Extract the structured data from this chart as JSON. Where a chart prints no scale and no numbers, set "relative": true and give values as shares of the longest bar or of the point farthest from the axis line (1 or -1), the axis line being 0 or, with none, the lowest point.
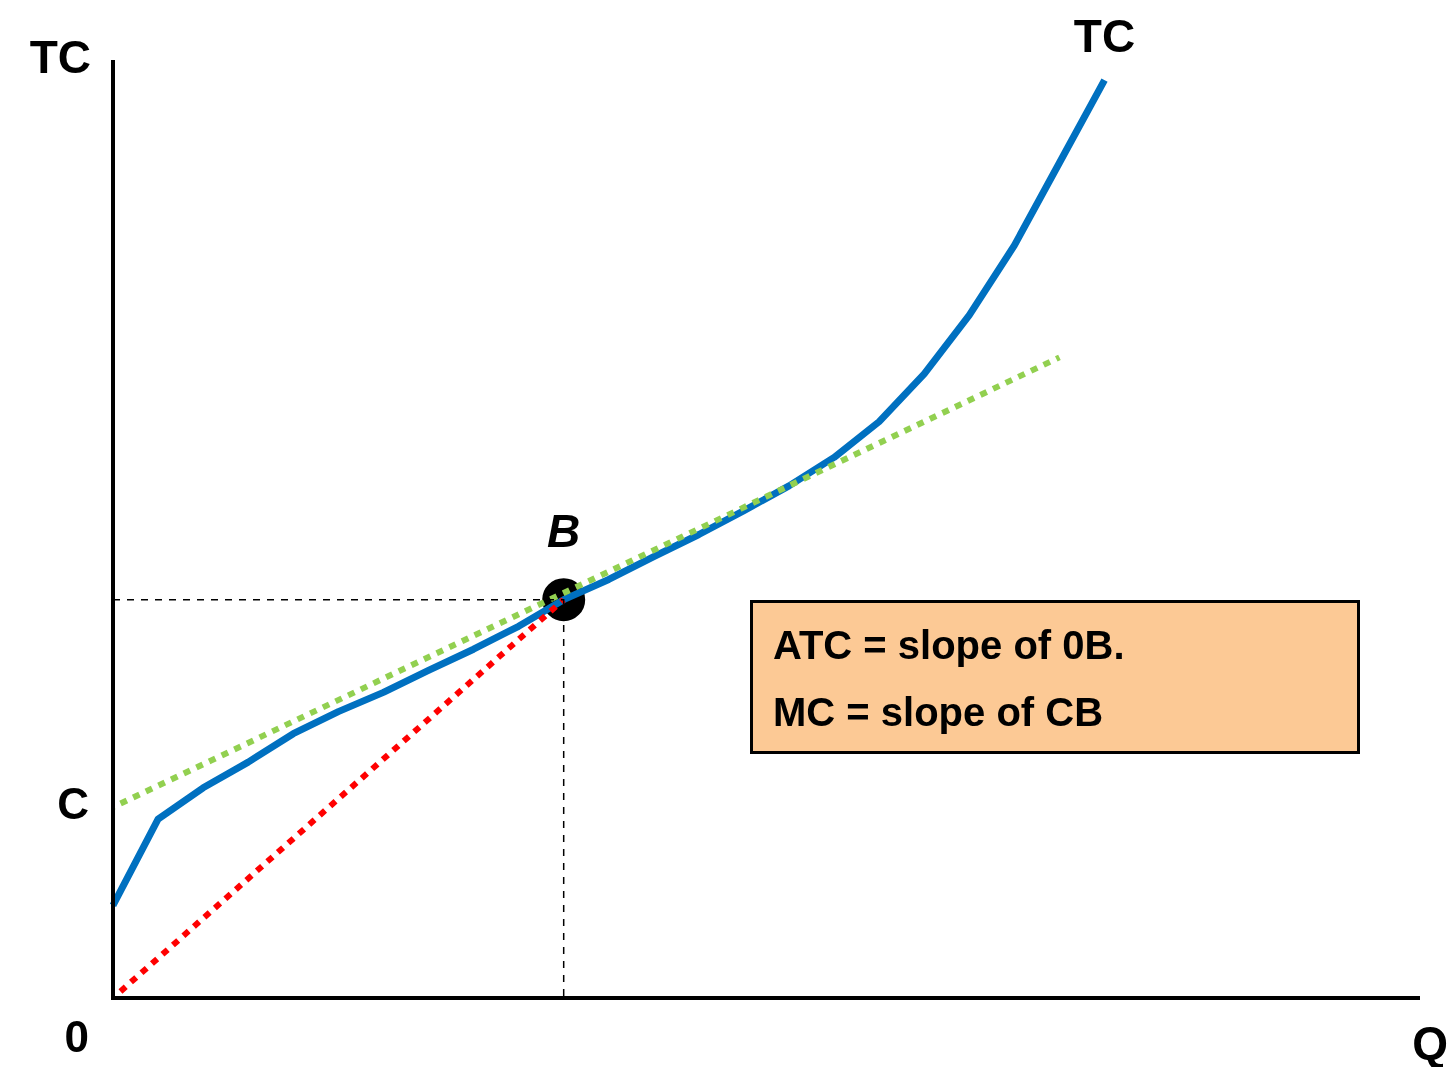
{
  "chart_data": {
    "type": "line",
    "relative": true,
    "xlabel": "Q",
    "ylabel": "TC",
    "categories": [
      null,
      null,
      null,
      null,
      null,
      null,
      null,
      null,
      null,
      null,
      null,
      null,
      null,
      null,
      null,
      null,
      null,
      null,
      null,
      null,
      null,
      null,
      null,
      null,
      null,
      null,
      null,
      null,
      null,
      null
    ],
    "series": [
      {
        "name": "TC",
        "type": "line",
        "color": "#0070c0",
        "line_style": "solid",
        "values": [
          0.101,
          0.195,
          0.229,
          0.257,
          0.288,
          0.312,
          0.333,
          0.357,
          0.38,
          0.405,
          0.434,
          0.456,
          0.481,
          0.505,
          0.531,
          0.558,
          0.589,
          0.628,
          0.68,
          0.744,
          0.82,
          0.91,
          1.0,
          null,
          null,
          null,
          null,
          null,
          null,
          null
        ]
      },
      {
        "type": "line",
        "color": "#92d050",
        "line_style": "dotted",
        "values": [
          0.208,
          null,
          null,
          null,
          null,
          null,
          null,
          null,
          null,
          null,
          null,
          null,
          null,
          null,
          null,
          null,
          null,
          null,
          null,
          null,
          null,
          0.698,
          null,
          null,
          null,
          null,
          null,
          null,
          null,
          null
        ]
      },
      {
        "type": "line",
        "color": "#ff0000",
        "line_style": "dotted",
        "values": [
          0,
          null,
          null,
          null,
          null,
          null,
          null,
          null,
          null,
          null,
          0.434,
          null,
          null,
          null,
          null,
          null,
          null,
          null,
          null,
          null,
          null,
          null,
          null,
          null,
          null,
          null,
          null,
          null,
          null,
          null
        ]
      },
      {
        "name": "B",
        "type": "line",
        "color": "#000000",
        "marker": "circle",
        "values": [
          null,
          null,
          null,
          null,
          null,
          null,
          null,
          null,
          null,
          null,
          0.434,
          null,
          null,
          null,
          null,
          null,
          null,
          null,
          null,
          null,
          null,
          null,
          null,
          null,
          null,
          null,
          null,
          null,
          null,
          null
        ]
      }
    ],
    "annotations": [
      "C",
      "0",
      "ATC = slope of 0B.",
      "MC = slope of CB"
    ]
  }
}
